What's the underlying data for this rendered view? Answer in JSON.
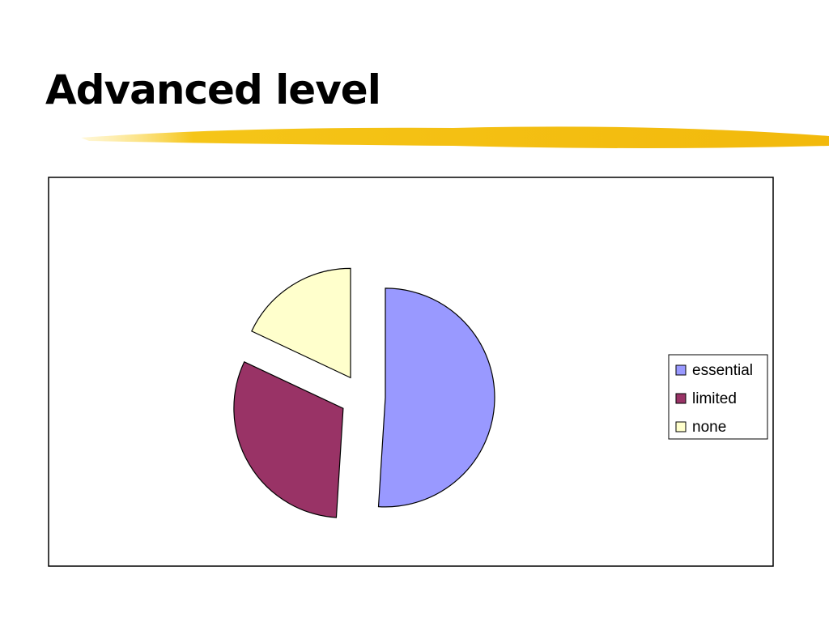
{
  "title": "Advanced level",
  "chart_data": {
    "type": "pie",
    "categories": [
      "essential",
      "limited",
      "none"
    ],
    "values": [
      51,
      31,
      18
    ],
    "colors": [
      "#9999ff",
      "#993366",
      "#ffffcc"
    ],
    "legend": "right",
    "exploded": true
  }
}
